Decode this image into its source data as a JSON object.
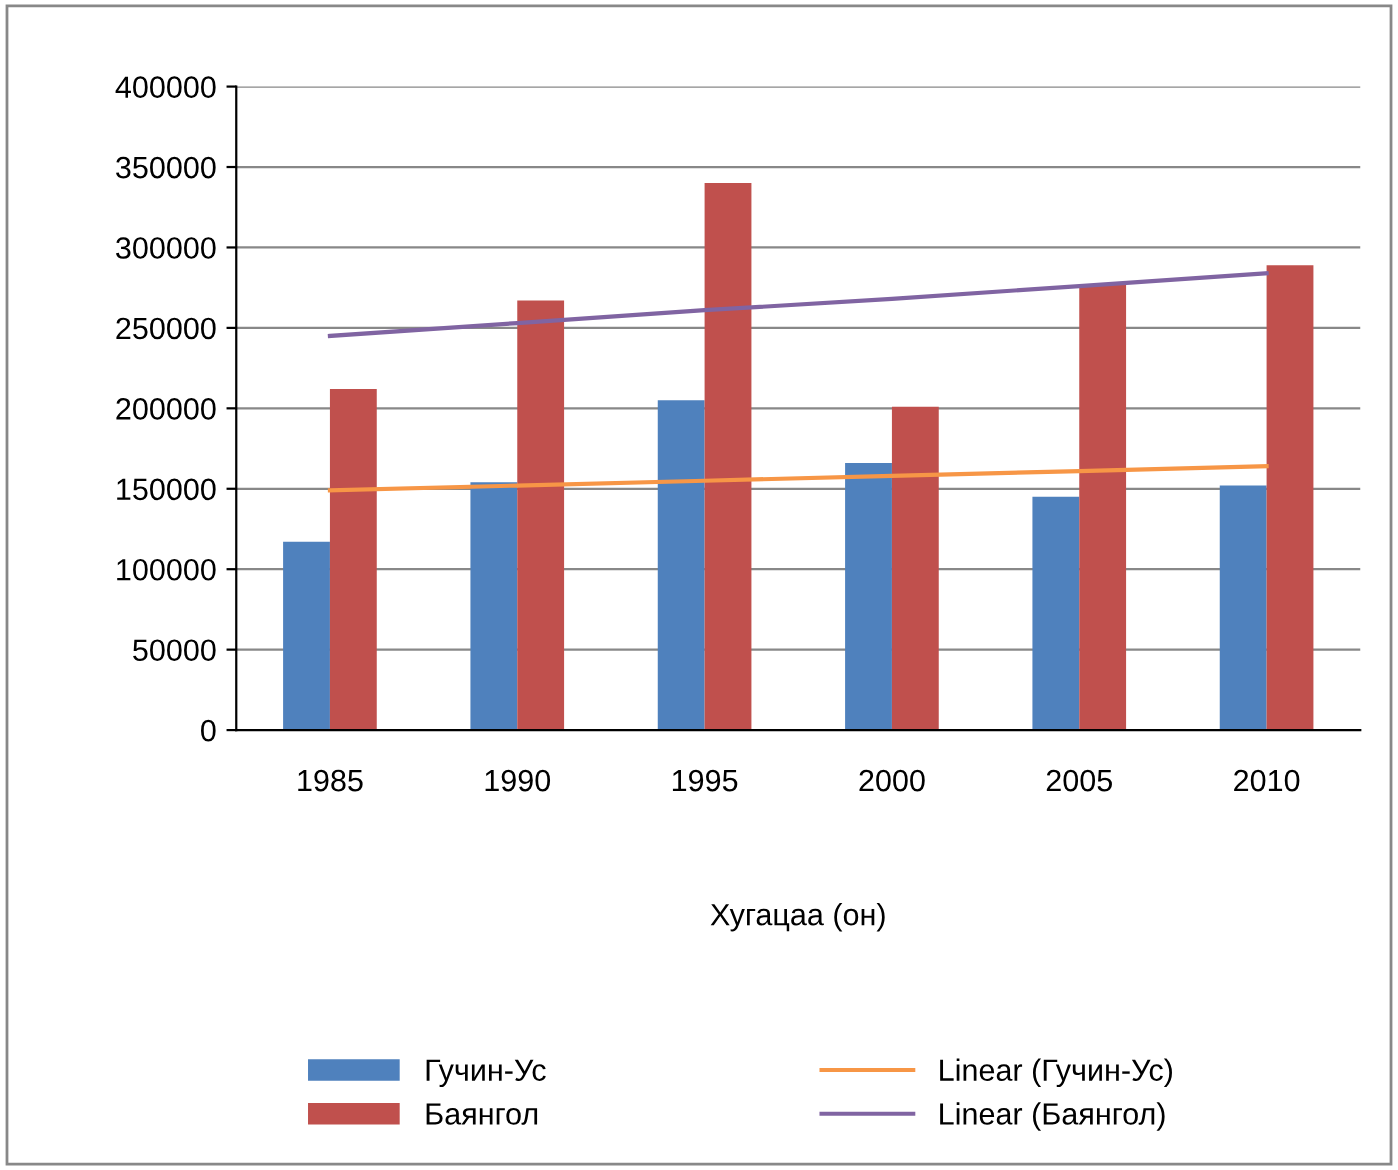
{
  "chart_data": {
    "type": "bar",
    "xlabel": "Хугацаа (он)",
    "categories": [
      "1985",
      "1990",
      "1995",
      "2000",
      "2005",
      "2010"
    ],
    "series": [
      {
        "name": "Гучин-Ус",
        "color": "#4f81bd",
        "values": [
          117000,
          154000,
          205000,
          166000,
          145000,
          152000
        ]
      },
      {
        "name": "Баянгол",
        "color": "#c0504d",
        "values": [
          212000,
          267000,
          340000,
          201000,
          277000,
          289000
        ]
      },
      {
        "name": "Linear (Гучин-Ус)",
        "type": "line",
        "color": "#f79646",
        "values": [
          149000,
          152000,
          155000,
          158000,
          161000,
          164000
        ]
      },
      {
        "name": "Linear (Баянгол)",
        "type": "line",
        "color": "#8064a2",
        "values": [
          245000,
          253000,
          261000,
          268000,
          276000,
          284000
        ]
      }
    ],
    "ylim": [
      0,
      400000
    ],
    "yticks": [
      0,
      50000,
      100000,
      150000,
      200000,
      250000,
      300000,
      350000,
      400000
    ],
    "grid": "y",
    "legend": "bottom"
  }
}
